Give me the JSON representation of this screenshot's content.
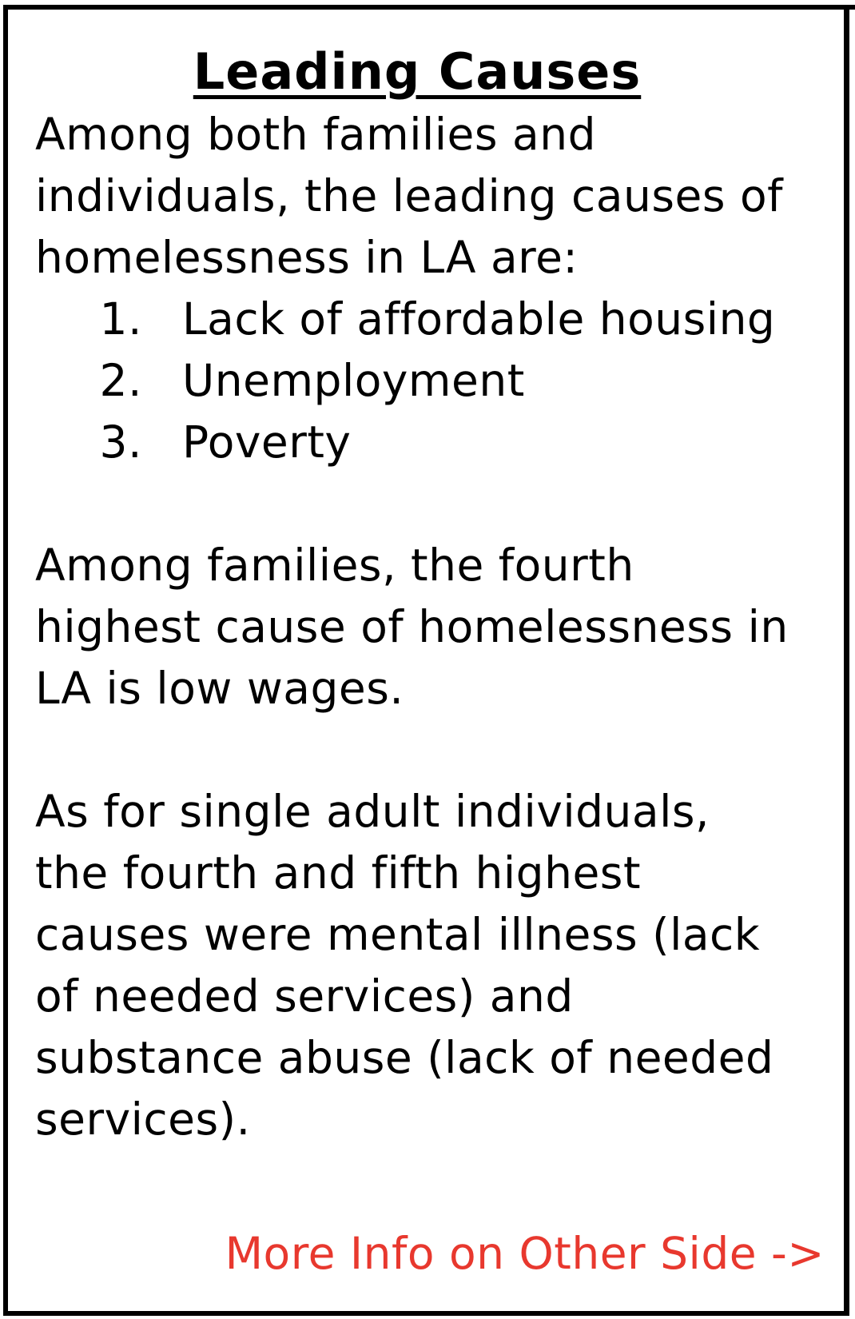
{
  "title": "Leading Causes",
  "intro": {
    "line1": "Among both families and",
    "line2": "individuals, the leading causes of",
    "line3": "homelessness in LA are:"
  },
  "causes": [
    {
      "num": "1.",
      "label": "Lack of affordable housing"
    },
    {
      "num": "2.",
      "label": "Unemployment"
    },
    {
      "num": "3.",
      "label": "Poverty"
    }
  ],
  "families": {
    "line1": "Among families, the fourth",
    "line2": "highest cause of homelessness in",
    "line3": "LA is low wages."
  },
  "individuals": {
    "line1": "As for single adult individuals,",
    "line2": "the fourth and fifth highest",
    "line3": "causes were mental illness (lack",
    "line4": "of needed services) and",
    "line5": "substance abuse (lack of needed",
    "line6": "services)."
  },
  "more_link": "More Info on Other Side ->",
  "colors": {
    "accent": "#e8382e",
    "text": "#000000",
    "border": "#000000"
  }
}
